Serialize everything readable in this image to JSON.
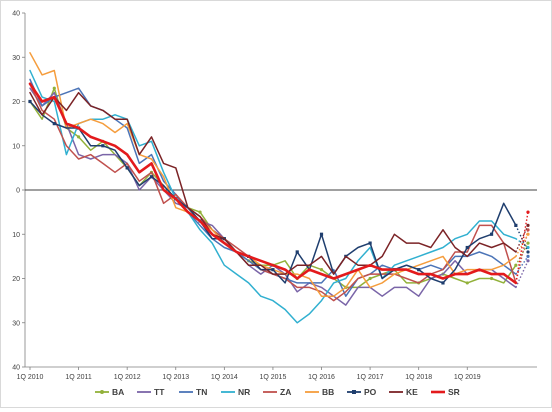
{
  "chart_data": {
    "type": "line",
    "title": "",
    "xlabel": "",
    "ylabel": "",
    "ylim": [
      -40,
      40
    ],
    "yticks": [
      40,
      30,
      20,
      10,
      0,
      -10,
      -20,
      -30,
      -40
    ],
    "ytick_labels": [
      "40",
      "30",
      "20",
      "10",
      "0",
      "10",
      "20",
      "30",
      "40"
    ],
    "x_labels": [
      {
        "index": 0,
        "label": "1Q 2010"
      },
      {
        "index": 4,
        "label": "1Q 2011"
      },
      {
        "index": 8,
        "label": "1Q 2012"
      },
      {
        "index": 12,
        "label": "1Q 2013"
      },
      {
        "index": 16,
        "label": "1Q 2014"
      },
      {
        "index": 20,
        "label": "1Q 2015"
      },
      {
        "index": 24,
        "label": "1Q 2016"
      },
      {
        "index": 28,
        "label": "1Q 2017"
      },
      {
        "index": 32,
        "label": "1Q 2018"
      },
      {
        "index": 36,
        "label": "1Q 2019"
      }
    ],
    "x_count": 41,
    "grid": false,
    "legend_position": "bottom",
    "series": [
      {
        "name": "BA",
        "color": "#92b13a",
        "marker": "circle",
        "values": [
          20,
          16,
          23,
          14,
          12,
          9,
          11,
          8,
          5,
          1,
          4,
          1,
          -2,
          -4,
          -5,
          -9,
          -11,
          -14,
          -16,
          -17,
          -17,
          -16,
          -20,
          -17,
          -18,
          -20,
          -22,
          -22,
          -20,
          -19,
          -18,
          -21,
          -21,
          -20,
          -19,
          -20,
          -21,
          -20,
          -20,
          -21,
          -17
        ]
      },
      {
        "name": "TT",
        "color": "#7a65a8",
        "values": [
          23,
          19,
          22,
          15,
          8,
          7,
          8,
          8,
          6,
          0,
          3,
          0,
          -3,
          -4,
          -7,
          -8,
          -11,
          -14,
          -17,
          -19,
          -17,
          -19,
          -23,
          -21,
          -22,
          -24,
          -26,
          -22,
          -22,
          -24,
          -22,
          -22,
          -24,
          -20,
          -19,
          -16,
          -19,
          -18,
          -18,
          -20,
          -22
        ]
      },
      {
        "name": "TN",
        "color": "#4b74b7",
        "values": [
          25,
          19,
          21,
          22,
          23,
          19,
          18,
          16,
          14,
          6,
          8,
          2,
          -1,
          -5,
          -8,
          -11,
          -13,
          -14,
          -16,
          -18,
          -19,
          -20,
          -21,
          -21,
          -21,
          -18,
          -24,
          -20,
          -19,
          -17,
          -18,
          -17,
          -18,
          -17,
          -18,
          -15,
          -15,
          -14,
          -15,
          -17,
          -19
        ]
      },
      {
        "name": "NR",
        "color": "#31b0d0",
        "values": [
          27,
          21,
          20,
          8,
          15,
          16,
          16,
          17,
          16,
          10,
          11,
          4,
          -2,
          -5,
          -9,
          -12,
          -17,
          -19,
          -21,
          -24,
          -25,
          -27,
          -30,
          -28,
          -25,
          -21,
          -20,
          -16,
          -13,
          -20,
          -17,
          -16,
          -15,
          -14,
          -13,
          -11,
          -10,
          -7,
          -7,
          -10,
          -11
        ]
      },
      {
        "name": "ZA",
        "color": "#c0504d",
        "values": [
          24,
          18,
          16,
          10,
          7,
          8,
          6,
          4,
          6,
          2,
          4,
          -3,
          -1,
          -4,
          -6,
          -9,
          -11,
          -13,
          -15,
          -18,
          -19,
          -20,
          -22,
          -22,
          -23,
          -25,
          -23,
          -20,
          -19,
          -19,
          -19,
          -20,
          -21,
          -19,
          -18,
          -14,
          -14,
          -8,
          -8,
          -12,
          -21
        ]
      },
      {
        "name": "BB",
        "color": "#f59d3d",
        "values": [
          31,
          26,
          27,
          14,
          15,
          16,
          15,
          13,
          15,
          8,
          7,
          3,
          -4,
          -5,
          -7,
          -9,
          -12,
          -14,
          -15,
          -17,
          -18,
          -19,
          -19,
          -20,
          -24,
          -24,
          -22,
          -18,
          -22,
          -21,
          -19,
          -18,
          -17,
          -16,
          -15,
          -19,
          -18,
          -18,
          -18,
          -17,
          -15
        ]
      },
      {
        "name": "PO",
        "color": "#1f3e6e",
        "marker": "square",
        "values": [
          20,
          17,
          15,
          14,
          14,
          10,
          10,
          9,
          5,
          1,
          3,
          1,
          -2,
          -4,
          -7,
          -11,
          -11,
          -14,
          -15,
          -18,
          -18,
          -21,
          -14,
          -18,
          -10,
          -19,
          -15,
          -13,
          -12,
          -20,
          -18,
          -17,
          -18,
          -20,
          -21,
          -18,
          -13,
          -11,
          -10,
          -3,
          -8
        ]
      },
      {
        "name": "KE",
        "color": "#7b2326",
        "values": [
          22,
          17,
          21,
          18,
          22,
          19,
          18,
          16,
          16,
          8,
          12,
          6,
          5,
          -4,
          -6,
          -10,
          -11,
          -14,
          -17,
          -17,
          -19,
          -19,
          -17,
          -17,
          -15,
          -19,
          -15,
          -17,
          -17,
          -15,
          -10,
          -12,
          -12,
          -13,
          -9,
          -13,
          -15,
          -12,
          -13,
          -12,
          -14
        ]
      },
      {
        "name": "SR",
        "color": "#e31a1c",
        "values": [
          24,
          20,
          21,
          15,
          14,
          12,
          11,
          10,
          8,
          4,
          6,
          0,
          -2,
          -5,
          -7,
          -10,
          -12,
          -14,
          -15,
          -16,
          -17,
          -18,
          -20,
          -18,
          -19,
          -20,
          -19,
          -18,
          -17,
          -18,
          -18,
          -18,
          -19,
          -19,
          -20,
          -19,
          -19,
          -18,
          -19,
          -19,
          -21
        ]
      }
    ],
    "projection": {
      "from_index": 40,
      "to_index": 41,
      "series_values": {
        "BA": [
          -17,
          -12
        ],
        "TT": [
          -22,
          -16
        ],
        "TN": [
          -19,
          -15
        ],
        "NR": [
          -11,
          -13
        ],
        "ZA": [
          -21,
          -9
        ],
        "BB": [
          -15,
          -10
        ],
        "PO": [
          -8,
          -14
        ],
        "KE": [
          -14,
          -8
        ],
        "SR": [
          -21,
          -5
        ]
      }
    }
  }
}
